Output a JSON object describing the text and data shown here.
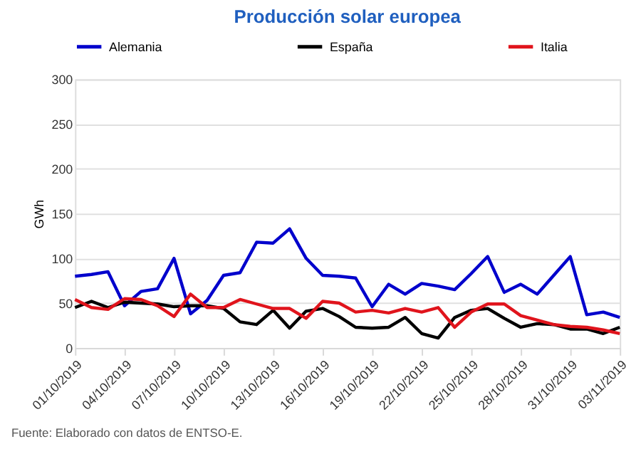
{
  "chart_data": {
    "type": "line",
    "title": "Producción solar europea",
    "ylabel": "GWh",
    "x": [
      "2019-10-01",
      "2019-10-02",
      "2019-10-03",
      "2019-10-04",
      "2019-10-05",
      "2019-10-06",
      "2019-10-07",
      "2019-10-08",
      "2019-10-09",
      "2019-10-10",
      "2019-10-11",
      "2019-10-12",
      "2019-10-13",
      "2019-10-14",
      "2019-10-15",
      "2019-10-16",
      "2019-10-17",
      "2019-10-18",
      "2019-10-19",
      "2019-10-20",
      "2019-10-21",
      "2019-10-22",
      "2019-10-23",
      "2019-10-24",
      "2019-10-25",
      "2019-10-26",
      "2019-10-27",
      "2019-10-28",
      "2019-10-29",
      "2019-10-30",
      "2019-10-31",
      "2019-11-01",
      "2019-11-02",
      "2019-11-03"
    ],
    "series": [
      {
        "name": "Alemania",
        "color": "#0000cc",
        "values": [
          80,
          82,
          85,
          47,
          63,
          66,
          100,
          38,
          53,
          81,
          84,
          118,
          117,
          133,
          100,
          81,
          80,
          78,
          46,
          71,
          60,
          72,
          69,
          65,
          83,
          102,
          62,
          71,
          60,
          81,
          102,
          37,
          40,
          34
        ]
      },
      {
        "name": "España",
        "color": "#000000",
        "values": [
          45,
          52,
          45,
          51,
          50,
          49,
          46,
          47,
          47,
          44,
          29,
          26,
          42,
          22,
          41,
          44,
          35,
          23,
          22,
          23,
          34,
          16,
          11,
          34,
          42,
          44,
          33,
          23,
          27,
          26,
          21,
          21,
          16,
          23
        ]
      },
      {
        "name": "Italia",
        "color": "#e0141c",
        "values": [
          54,
          45,
          43,
          55,
          54,
          47,
          35,
          60,
          45,
          45,
          54,
          49,
          44,
          44,
          33,
          52,
          50,
          40,
          42,
          39,
          44,
          40,
          45,
          23,
          40,
          49,
          49,
          36,
          31,
          26,
          24,
          23,
          20,
          16
        ]
      }
    ],
    "xlim": [
      "2019-10-01",
      "2019-11-03"
    ],
    "xticks": [
      {
        "value": "2019-10-01",
        "label": "01/10/2019"
      },
      {
        "value": "2019-10-04",
        "label": "04/10/2019"
      },
      {
        "value": "2019-10-07",
        "label": "07/10/2019"
      },
      {
        "value": "2019-10-10",
        "label": "10/10/2019"
      },
      {
        "value": "2019-10-13",
        "label": "13/10/2019"
      },
      {
        "value": "2019-10-16",
        "label": "16/10/2019"
      },
      {
        "value": "2019-10-19",
        "label": "19/10/2019"
      },
      {
        "value": "2019-10-22",
        "label": "22/10/2019"
      },
      {
        "value": "2019-10-25",
        "label": "25/10/2019"
      },
      {
        "value": "2019-10-28",
        "label": "28/10/2019"
      },
      {
        "value": "2019-10-31",
        "label": "31/10/2019"
      },
      {
        "value": "2019-11-03",
        "label": "03/11/2019"
      }
    ],
    "ylim": [
      0,
      300
    ],
    "yticks": [
      0,
      50,
      100,
      150,
      200,
      250,
      300
    ],
    "grid": "y",
    "legend": "top",
    "marker": "none",
    "line_style": "solid",
    "annotations": [
      "Fuente: Elaborado con datos de ENTSO-E."
    ]
  }
}
